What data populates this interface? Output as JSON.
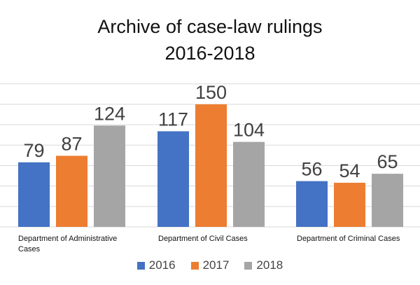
{
  "chart_data": {
    "type": "bar",
    "title_line1": "Archive of case-law rulings",
    "title_line2": "2016-2018",
    "categories": [
      "Department of Administrative Cases",
      "Department of Civil Cases",
      "Department of Criminal Cases"
    ],
    "series": [
      {
        "name": "2016",
        "color": "#4472C4",
        "values": [
          79,
          117,
          56
        ]
      },
      {
        "name": "2017",
        "color": "#ED7D31",
        "values": [
          87,
          150,
          54
        ]
      },
      {
        "name": "2018",
        "color": "#A5A5A5",
        "values": [
          124,
          104,
          65
        ]
      }
    ],
    "ylim": [
      0,
      175
    ],
    "grid": true,
    "legend_position": "bottom",
    "xlabel": "",
    "ylabel": ""
  }
}
